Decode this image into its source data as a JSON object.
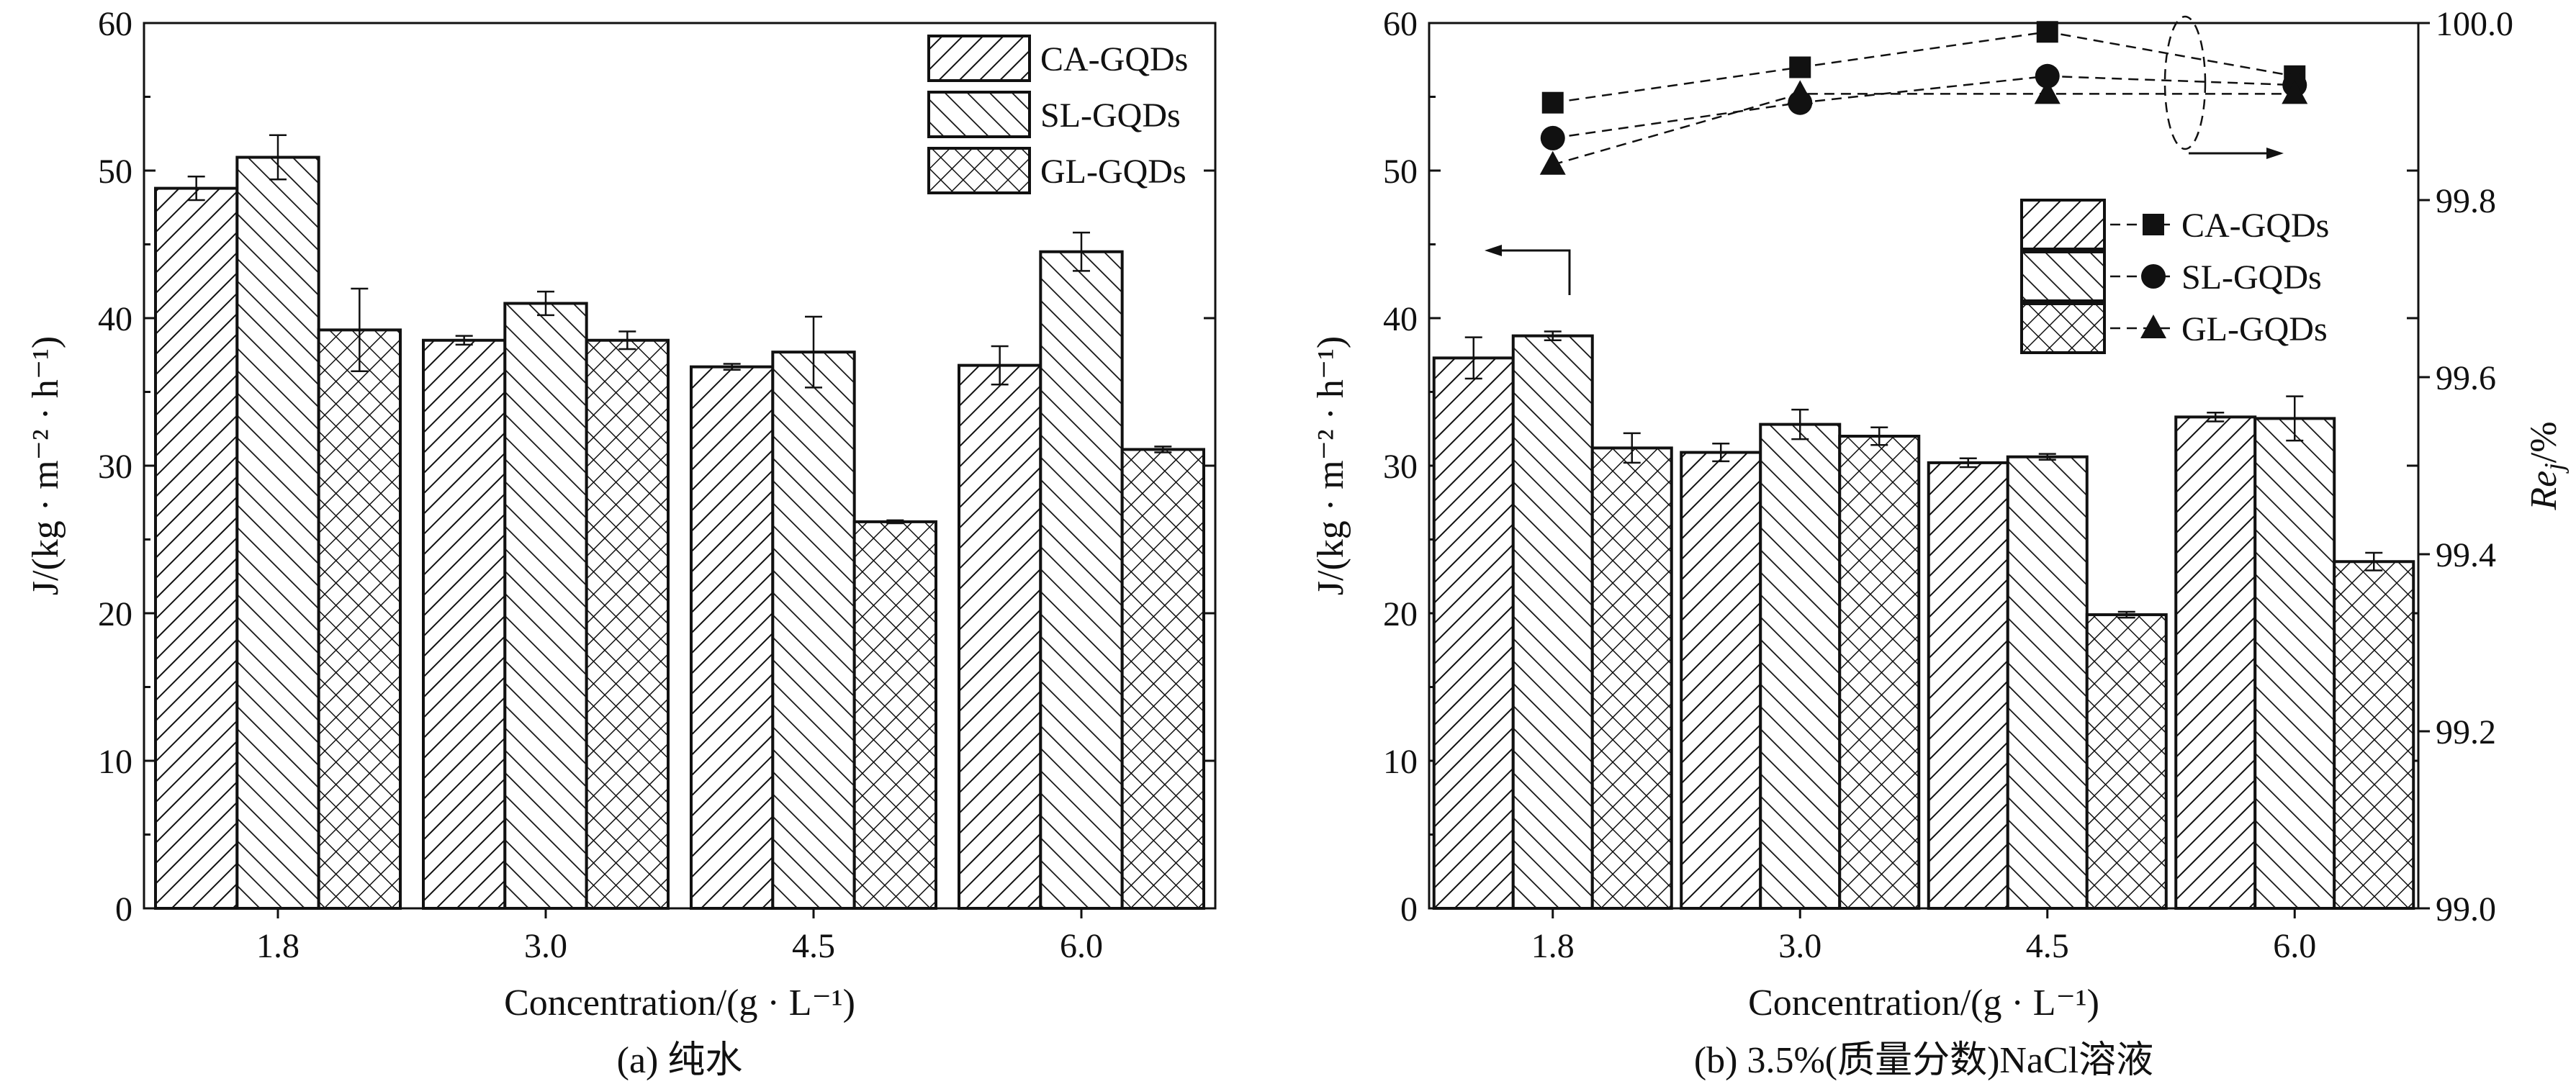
{
  "figure": {
    "panel_a_caption": "(a) 纯水",
    "panel_b_caption": "(b) 3.5%(质量分数)NaCl溶液"
  },
  "colors": {
    "ink": "#111111",
    "background": "#ffffff"
  },
  "chart_data": [
    {
      "id": "a",
      "type": "bar",
      "title": "",
      "xlabel": "Concentration/(g · L⁻¹)",
      "ylabel": "J/(kg · m⁻² · h⁻¹)",
      "ylim": [
        0,
        60
      ],
      "yticks": [
        "0",
        "10",
        "20",
        "30",
        "40",
        "50",
        "60"
      ],
      "categories": [
        "1.8",
        "3.0",
        "4.5",
        "6.0"
      ],
      "legend_position": "top-right",
      "series": [
        {
          "name": "CA-GQDs",
          "pattern": "hatch-forward",
          "values": [
            48.8,
            38.5,
            36.7,
            36.8
          ],
          "errors": [
            0.8,
            0.3,
            0.2,
            1.3
          ]
        },
        {
          "name": "SL-GQDs",
          "pattern": "hatch-back",
          "values": [
            50.9,
            41.0,
            37.7,
            44.5
          ],
          "errors": [
            1.5,
            0.8,
            2.4,
            1.3
          ]
        },
        {
          "name": "GL-GQDs",
          "pattern": "crosshatch",
          "values": [
            39.2,
            38.5,
            26.2,
            31.1
          ],
          "errors": [
            2.8,
            0.6,
            0.1,
            0.2
          ]
        }
      ]
    },
    {
      "id": "b",
      "type": "bar",
      "title": "",
      "xlabel": "Concentration/(g · L⁻¹)",
      "ylabel": "J/(kg · m⁻² · h⁻¹)",
      "y2label": "Re",
      "y2label_sub": "j",
      "y2label_suffix": "/%",
      "ylim": [
        0,
        60
      ],
      "yticks": [
        "0",
        "10",
        "20",
        "30",
        "40",
        "50",
        "60"
      ],
      "y2lim": [
        99.0,
        100.0
      ],
      "y2ticks": [
        "99.0",
        "99.2",
        "99.4",
        "99.6",
        "99.8",
        "100.0"
      ],
      "categories": [
        "1.8",
        "3.0",
        "4.5",
        "6.0"
      ],
      "legend_position": "middle-right",
      "series": [
        {
          "name": "CA-GQDs",
          "pattern": "hatch-forward",
          "marker": "square",
          "values": [
            37.3,
            30.9,
            30.2,
            33.3
          ],
          "errors": [
            1.4,
            0.6,
            0.3,
            0.3
          ],
          "rejection": [
            99.91,
            99.95,
            99.99,
            99.94
          ]
        },
        {
          "name": "SL-GQDs",
          "pattern": "hatch-back",
          "marker": "circle",
          "values": [
            38.8,
            32.8,
            30.6,
            33.2
          ],
          "errors": [
            0.3,
            1.0,
            0.2,
            1.5
          ],
          "rejection": [
            99.87,
            99.91,
            99.94,
            99.93
          ]
        },
        {
          "name": "GL-GQDs",
          "pattern": "crosshatch",
          "marker": "triangle",
          "values": [
            31.2,
            32.0,
            19.9,
            23.5
          ],
          "errors": [
            1.0,
            0.6,
            0.2,
            0.6
          ],
          "rejection": [
            99.84,
            99.92,
            99.92,
            99.92
          ]
        }
      ]
    }
  ]
}
